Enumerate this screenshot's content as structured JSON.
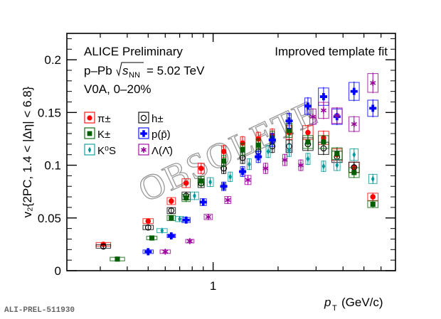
{
  "footer_id": "ALI-PREL-511930",
  "chart_data": {
    "type": "scatter",
    "title": "",
    "annotations": {
      "experiment": "ALICE Preliminary",
      "system": "p–Pb",
      "energy_symbol": "s",
      "energy_sub": "NN",
      "energy_value": "= 5.02 TeV",
      "centrality": "V0A, 0–20%",
      "method": "Improved template fit",
      "watermark": "OBSOLETE"
    },
    "xlabel": "p",
    "xlabel_sub": "T",
    "xlabel_unit": "(GeV/c)",
    "ylabel": "v₂{2PC, 1.4 < |Δη| < 6.8}",
    "xscale": "log",
    "xlim": [
      0.21,
      7.0
    ],
    "ylim": [
      0,
      0.225
    ],
    "x_ticks": [
      {
        "v": 1,
        "label": "1"
      }
    ],
    "x_minor": [
      0.3,
      0.4,
      0.5,
      0.6,
      0.7,
      0.8,
      0.9,
      2,
      3,
      4,
      5,
      6
    ],
    "y_ticks": [
      {
        "v": 0,
        "label": "0"
      },
      {
        "v": 0.05,
        "label": "0.05"
      },
      {
        "v": 0.1,
        "label": "0.1"
      },
      {
        "v": 0.15,
        "label": "0.15"
      },
      {
        "v": 0.2,
        "label": "0.2"
      }
    ],
    "grid": false,
    "legend_placement": "top-left",
    "series": [
      {
        "name": "π±",
        "key": "pi",
        "color": "#ff0000",
        "marker": "circle-filled",
        "points": [
          [
            0.31,
            0.025,
            0.07
          ],
          [
            0.5,
            0.047,
            0.05
          ],
          [
            0.64,
            0.066,
            0.04
          ],
          [
            0.75,
            0.083,
            0.04
          ],
          [
            0.88,
            0.097,
            0.03
          ],
          [
            1.12,
            0.113,
            0.02
          ],
          [
            1.37,
            0.121,
            0.02
          ],
          [
            1.62,
            0.125,
            0.02
          ],
          [
            1.88,
            0.128,
            0.02
          ],
          [
            2.25,
            0.131,
            0.03
          ],
          [
            2.75,
            0.131,
            0.05
          ],
          [
            3.25,
            0.126,
            0.05
          ],
          [
            3.75,
            0.11,
            0.05
          ],
          [
            4.5,
            0.098,
            0.05
          ],
          [
            5.5,
            0.07,
            0.05
          ]
        ]
      },
      {
        "name": "h±",
        "key": "h",
        "color": "#000000",
        "marker": "circle-open",
        "points": [
          [
            0.31,
            0.023,
            0.07
          ],
          [
            0.5,
            0.041,
            0.05
          ],
          [
            0.64,
            0.057,
            0.04
          ],
          [
            0.75,
            0.071,
            0.04
          ],
          [
            0.88,
            0.083,
            0.03
          ],
          [
            1.12,
            0.097,
            0.02
          ],
          [
            1.37,
            0.107,
            0.02
          ],
          [
            1.62,
            0.113,
            0.02
          ],
          [
            1.88,
            0.118,
            0.02
          ],
          [
            2.25,
            0.118,
            0.03
          ],
          [
            2.75,
            0.12,
            0.05
          ],
          [
            3.25,
            0.116,
            0.05
          ],
          [
            3.75,
            0.108,
            0.05
          ],
          [
            4.5,
            0.098,
            0.05
          ]
        ]
      },
      {
        "name": "K±",
        "key": "kch",
        "color": "#006000",
        "marker": "square-filled",
        "points": [
          [
            0.36,
            0.011,
            0.07
          ],
          [
            0.52,
            0.031,
            0.05
          ],
          [
            0.64,
            0.05,
            0.04
          ],
          [
            0.75,
            0.069,
            0.04
          ],
          [
            0.88,
            0.085,
            0.03
          ],
          [
            1.12,
            0.104,
            0.02
          ],
          [
            1.37,
            0.115,
            0.02
          ],
          [
            1.62,
            0.119,
            0.02
          ],
          [
            1.88,
            0.126,
            0.02
          ],
          [
            2.25,
            0.133,
            0.03
          ],
          [
            2.75,
            0.122,
            0.05
          ],
          [
            3.25,
            0.122,
            0.05
          ],
          [
            3.75,
            0.111,
            0.05
          ],
          [
            4.5,
            0.093,
            0.05
          ],
          [
            5.5,
            0.063,
            0.05
          ]
        ]
      },
      {
        "name": "K⁰S",
        "key": "k0s",
        "color": "#009999",
        "marker": "diamond-filled",
        "points": [
          [
            0.58,
            0.038,
            0.05
          ],
          [
            0.7,
            0.049,
            0.04
          ],
          [
            0.82,
            0.071,
            0.04
          ],
          [
            0.97,
            0.084,
            0.03
          ],
          [
            1.2,
            0.089,
            0.02
          ],
          [
            1.47,
            0.101,
            0.02
          ],
          [
            1.8,
            0.113,
            0.02
          ],
          [
            2.25,
            0.114,
            0.02
          ],
          [
            2.75,
            0.106,
            0.02
          ],
          [
            3.25,
            0.099,
            0.02
          ],
          [
            3.75,
            0.1,
            0.03
          ],
          [
            4.5,
            0.11,
            0.04
          ],
          [
            5.5,
            0.087,
            0.04
          ]
        ]
      },
      {
        "name": "p(p̄)",
        "key": "p",
        "color": "#0000ff",
        "marker": "cross-filled",
        "points": [
          [
            0.5,
            0.018,
            0.05
          ],
          [
            0.64,
            0.033,
            0.04
          ],
          [
            0.75,
            0.048,
            0.04
          ],
          [
            0.9,
            0.065,
            0.03
          ],
          [
            1.12,
            0.08,
            0.02
          ],
          [
            1.37,
            0.094,
            0.02
          ],
          [
            1.62,
            0.108,
            0.02
          ],
          [
            1.88,
            0.124,
            0.02
          ],
          [
            2.25,
            0.142,
            0.02
          ],
          [
            2.75,
            0.156,
            0.03
          ],
          [
            3.25,
            0.165,
            0.05
          ],
          [
            3.75,
            0.146,
            0.05
          ],
          [
            4.5,
            0.17,
            0.05
          ],
          [
            5.5,
            0.154,
            0.05
          ]
        ]
      },
      {
        "name": "Λ(Λ̄)",
        "key": "lambda",
        "color": "#990099",
        "marker": "star",
        "points": [
          [
            0.6,
            0.018,
            0.05
          ],
          [
            0.78,
            0.028,
            0.04
          ],
          [
            0.95,
            0.051,
            0.04
          ],
          [
            1.17,
            0.067,
            0.03
          ],
          [
            1.45,
            0.086,
            0.03
          ],
          [
            1.75,
            0.097,
            0.02
          ],
          [
            2.15,
            0.105,
            0.02
          ],
          [
            2.55,
            0.1,
            0.02
          ],
          [
            2.9,
            0.146,
            0.03
          ],
          [
            3.25,
            0.152,
            0.05
          ],
          [
            3.75,
            0.147,
            0.05
          ],
          [
            4.5,
            0.139,
            0.05
          ],
          [
            5.5,
            0.178,
            0.05
          ]
        ]
      }
    ]
  }
}
